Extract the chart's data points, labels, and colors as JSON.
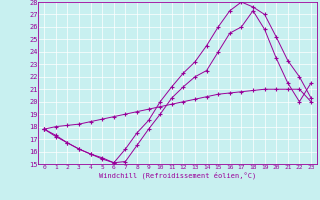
{
  "xlabel": "Windchill (Refroidissement éolien,°C)",
  "bg_color": "#c8f0f0",
  "line_color": "#990099",
  "grid_color": "#ffffff",
  "xlim": [
    -0.5,
    23.5
  ],
  "ylim": [
    15,
    28
  ],
  "xticks": [
    0,
    1,
    2,
    3,
    4,
    5,
    6,
    7,
    8,
    9,
    10,
    11,
    12,
    13,
    14,
    15,
    16,
    17,
    18,
    19,
    20,
    21,
    22,
    23
  ],
  "yticks": [
    15,
    16,
    17,
    18,
    19,
    20,
    21,
    22,
    23,
    24,
    25,
    26,
    27,
    28
  ],
  "line1_x": [
    0,
    1,
    2,
    3,
    4,
    5,
    6,
    7,
    8,
    9,
    10,
    11,
    12,
    13,
    14,
    15,
    16,
    17,
    18,
    19,
    20,
    21,
    22,
    23
  ],
  "line1_y": [
    17.8,
    18.0,
    18.1,
    18.2,
    18.4,
    18.6,
    18.8,
    19.0,
    19.2,
    19.4,
    19.6,
    19.8,
    20.0,
    20.2,
    20.4,
    20.6,
    20.7,
    20.8,
    20.9,
    21.0,
    21.0,
    21.0,
    21.0,
    20.0
  ],
  "line2_x": [
    0,
    1,
    2,
    3,
    4,
    5,
    6,
    7,
    8,
    9,
    10,
    11,
    12,
    13,
    14,
    15,
    16,
    17,
    18,
    19,
    20,
    21,
    22,
    23
  ],
  "line2_y": [
    17.8,
    17.3,
    16.7,
    16.2,
    15.8,
    15.5,
    15.1,
    15.2,
    16.5,
    17.8,
    19.0,
    20.3,
    21.2,
    22.0,
    22.5,
    24.0,
    25.5,
    26.0,
    27.3,
    25.8,
    23.5,
    21.5,
    20.0,
    21.5
  ],
  "line3_x": [
    0,
    1,
    2,
    3,
    4,
    5,
    6,
    7,
    8,
    9,
    10,
    11,
    12,
    13,
    14,
    15,
    16,
    17,
    18,
    19,
    20,
    21,
    22,
    23
  ],
  "line3_y": [
    17.8,
    17.2,
    16.7,
    16.2,
    15.8,
    15.4,
    15.1,
    16.2,
    17.5,
    18.5,
    20.0,
    21.2,
    22.3,
    23.2,
    24.5,
    26.0,
    27.3,
    28.0,
    27.6,
    27.0,
    25.2,
    23.3,
    22.0,
    20.3
  ]
}
